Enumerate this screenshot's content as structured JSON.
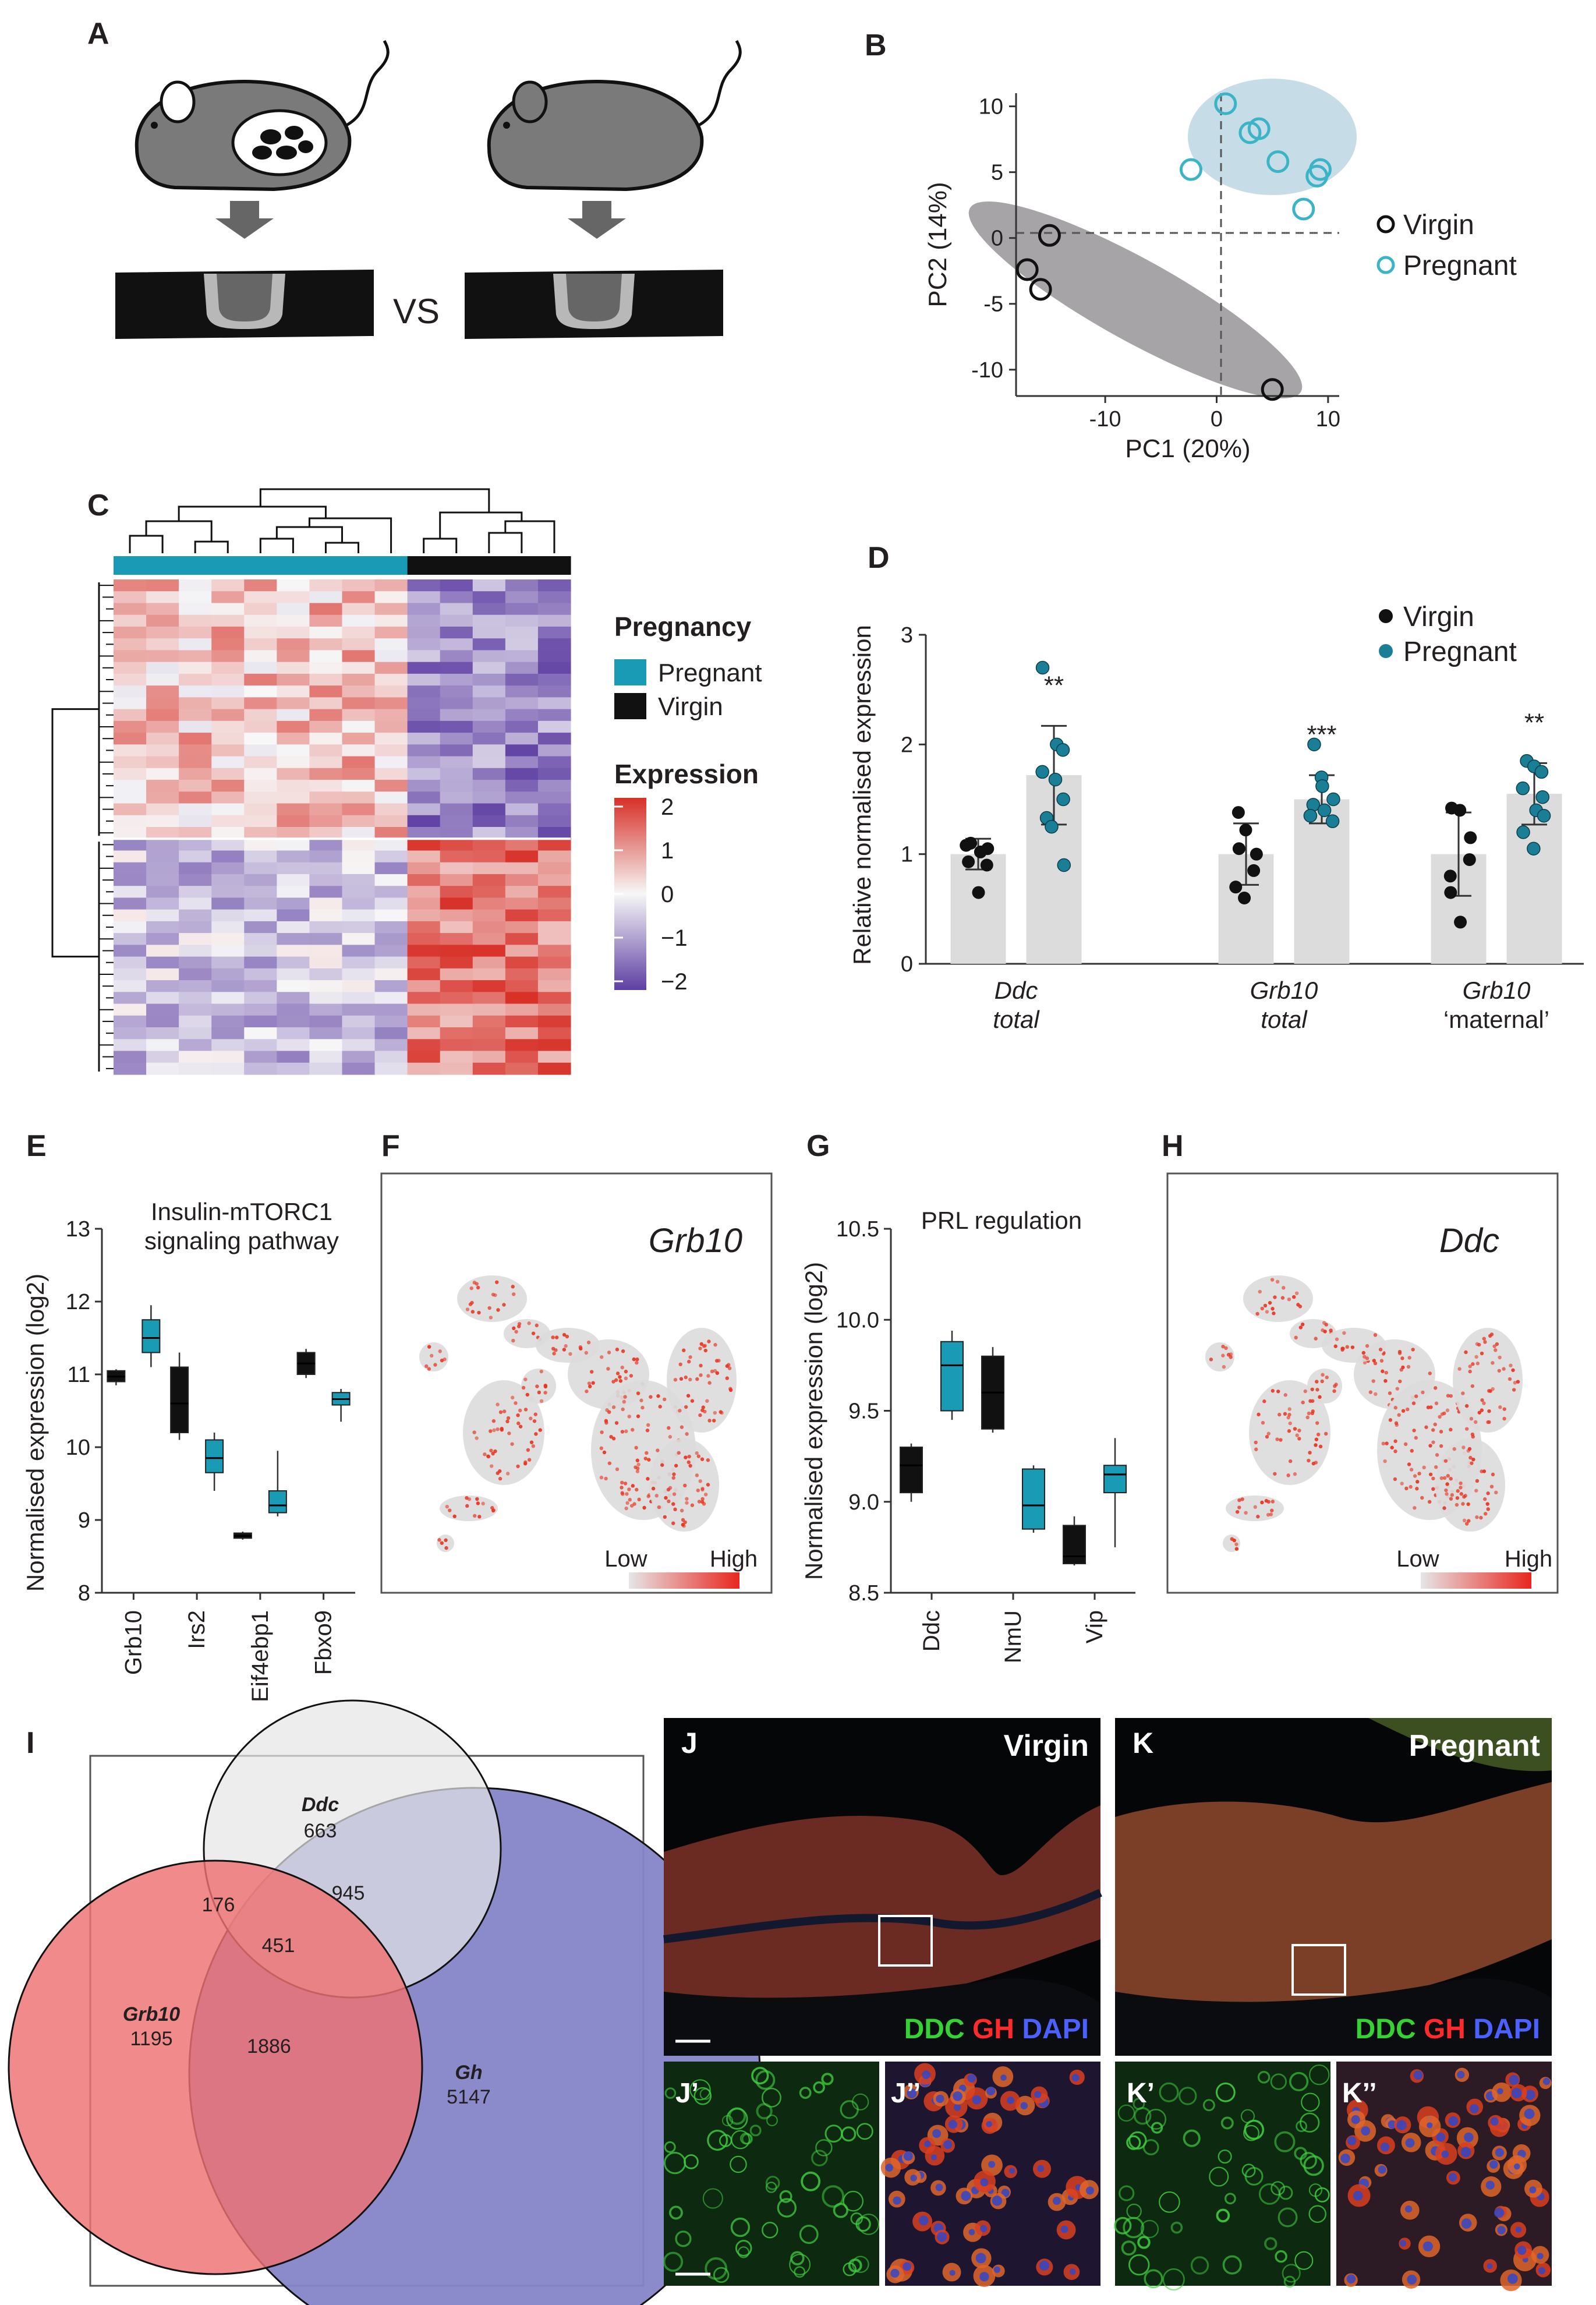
{
  "panels": {
    "A": "A",
    "B": "B",
    "C": "C",
    "D": "D",
    "E": "E",
    "F": "F",
    "G": "G",
    "H": "H",
    "I": "I",
    "J": "J",
    "K": "K",
    "J1": "J’",
    "J2": "J’’",
    "K1": "K’",
    "K2": "K’’"
  },
  "panel_a": {
    "vs_label": "VS"
  },
  "colors": {
    "virgin": "#111111",
    "pregnant": "#1a9bb5",
    "pregnant_light": "#3cb4c8",
    "pca_pregnant_fill": "#c6dde8",
    "pca_virgin_fill": "#a6a4a6",
    "heat_high": "#d73027",
    "heat_low": "#5e3fa3",
    "bar": "#dcdcdc",
    "venn_ddc": "#e6e6e6",
    "venn_grb10": "#ee7272",
    "venn_gh": "#8585c8"
  },
  "chart_data": [
    {
      "panel": "B",
      "type": "scatter",
      "xlabel": "PC1 (20%)",
      "ylabel": "PC2 (14%)",
      "xlim": [
        -18,
        11
      ],
      "ylim": [
        -12,
        11
      ],
      "xticks": [
        -10,
        0,
        10
      ],
      "yticks": [
        10,
        5,
        0,
        -5,
        -10
      ],
      "series": [
        {
          "name": "Virgin",
          "points": [
            [
              -15,
              0.2
            ],
            [
              -17,
              -2.4
            ],
            [
              -15.8,
              -3.9
            ],
            [
              5,
              -11.5
            ]
          ]
        },
        {
          "name": "Pregnant",
          "points": [
            [
              0.8,
              10.2
            ],
            [
              3,
              8
            ],
            [
              3.8,
              8.3
            ],
            [
              5.5,
              5.8
            ],
            [
              9,
              4.7
            ],
            [
              9.3,
              5.2
            ],
            [
              7.8,
              2.2
            ],
            [
              -2.3,
              5.2
            ]
          ]
        }
      ]
    },
    {
      "panel": "C",
      "type": "heatmap",
      "legend_group": "Pregnancy",
      "legend_items": [
        "Pregnant",
        "Virgin"
      ],
      "colorbar_title": "Expression",
      "colorbar_ticks": [
        "2",
        "1",
        "0",
        "−1",
        "−2"
      ],
      "columns": 14,
      "pregnant_columns": 9,
      "virgin_columns": 5,
      "upper_cluster_rows": 22,
      "lower_cluster_rows": 20
    },
    {
      "panel": "D",
      "type": "bar",
      "ylabel": "Relative normalised expression",
      "ylim": [
        0,
        3
      ],
      "yticks": [
        "0",
        "1",
        "2",
        "3"
      ],
      "categories": [
        {
          "line1": "Ddc",
          "line2": "total",
          "line2_italic": true
        },
        {
          "line1": "Grb10",
          "line2": "total",
          "line2_italic": true
        },
        {
          "line1": "Grb10",
          "line2": "‘maternal’",
          "line2_italic": false
        }
      ],
      "series": [
        {
          "name": "Virgin",
          "means": [
            1.0,
            1.0,
            1.0
          ],
          "sd": [
            0.14,
            0.28,
            0.38
          ],
          "points": [
            [
              0.93,
              1.02,
              1.05,
              1.1,
              0.65,
              0.9,
              1.08
            ],
            [
              1.38,
              1.22,
              0.85,
              0.7,
              0.6,
              1.0,
              1.05
            ],
            [
              1.42,
              1.4,
              0.95,
              0.65,
              0.38,
              1.15,
              0.8
            ]
          ]
        },
        {
          "name": "Pregnant",
          "means": [
            1.72,
            1.5,
            1.55
          ],
          "sd": [
            0.45,
            0.22,
            0.28
          ],
          "points": [
            [
              2.7,
              2.0,
              1.95,
              1.75,
              1.68,
              1.5,
              1.33,
              1.25,
              0.9
            ],
            [
              2.0,
              1.7,
              1.5,
              1.45,
              1.4,
              1.3,
              1.35,
              1.62
            ],
            [
              1.85,
              1.8,
              1.75,
              1.6,
              1.4,
              1.35,
              1.2,
              1.05,
              1.52
            ]
          ]
        }
      ],
      "significance": [
        "**",
        "***",
        "**"
      ]
    },
    {
      "panel": "E",
      "type": "box",
      "title_line1": "Insulin-mTORC1",
      "title_line2": "signaling pathway",
      "ylabel": "Normalised expression (log2)",
      "ylim": [
        8,
        13
      ],
      "yticks": [
        "8",
        "9",
        "10",
        "11",
        "12",
        "13"
      ],
      "categories": [
        "Grb10",
        "Irs2",
        "Eif4ebp1",
        "Fbxo9"
      ],
      "boxes": {
        "Virgin": [
          [
            10.85,
            10.9,
            10.97,
            11.05,
            11.07
          ],
          [
            10.1,
            10.2,
            10.6,
            11.1,
            11.3
          ],
          [
            8.73,
            8.75,
            8.78,
            8.82,
            8.84
          ],
          [
            10.95,
            11.0,
            11.15,
            11.3,
            11.35
          ]
        ],
        "Pregnant": [
          [
            11.1,
            11.3,
            11.5,
            11.75,
            11.95
          ],
          [
            9.4,
            9.65,
            9.85,
            10.1,
            10.2
          ],
          [
            9.05,
            9.1,
            9.2,
            9.4,
            9.95
          ],
          [
            10.35,
            10.58,
            10.66,
            10.75,
            10.8
          ]
        ]
      }
    },
    {
      "panel": "F",
      "type": "umap",
      "gene": "Grb10",
      "low_label": "Low",
      "high_label": "High"
    },
    {
      "panel": "G",
      "type": "box",
      "title": "PRL regulation",
      "ylabel": "Normalised expression (log2)",
      "ylim": [
        8.5,
        10.5
      ],
      "yticks": [
        "8.5",
        "9.0",
        "9.5",
        "10.0",
        "10.5"
      ],
      "categories": [
        "Ddc",
        "NmU",
        "Vip"
      ],
      "boxes": {
        "Virgin": [
          [
            9.0,
            9.05,
            9.2,
            9.3,
            9.32
          ],
          [
            9.38,
            9.4,
            9.6,
            9.8,
            9.85
          ],
          [
            8.65,
            8.66,
            8.7,
            8.87,
            8.92
          ]
        ],
        "Pregnant": [
          [
            9.45,
            9.5,
            9.75,
            9.88,
            9.94
          ],
          [
            8.83,
            8.85,
            8.98,
            9.18,
            9.2
          ],
          [
            8.75,
            9.05,
            9.15,
            9.2,
            9.35
          ]
        ]
      }
    },
    {
      "panel": "H",
      "type": "umap",
      "gene": "Ddc",
      "low_label": "Low",
      "high_label": "High"
    },
    {
      "panel": "I",
      "type": "venn",
      "sets": [
        {
          "name": "Ddc",
          "only": "663"
        },
        {
          "name": "Grb10",
          "only": "1195"
        },
        {
          "name": "Gh",
          "only": "5147"
        }
      ],
      "overlaps": {
        "ddc_gh": "945",
        "ddc_grb10": "176",
        "all_three": "451",
        "grb10_gh": "1886"
      }
    }
  ],
  "micrographs": {
    "J": {
      "condition": "Virgin"
    },
    "K": {
      "condition": "Pregnant"
    },
    "stain_labels": {
      "ddc": "DDC",
      "gh": "GH",
      "dapi": "DAPI"
    }
  }
}
